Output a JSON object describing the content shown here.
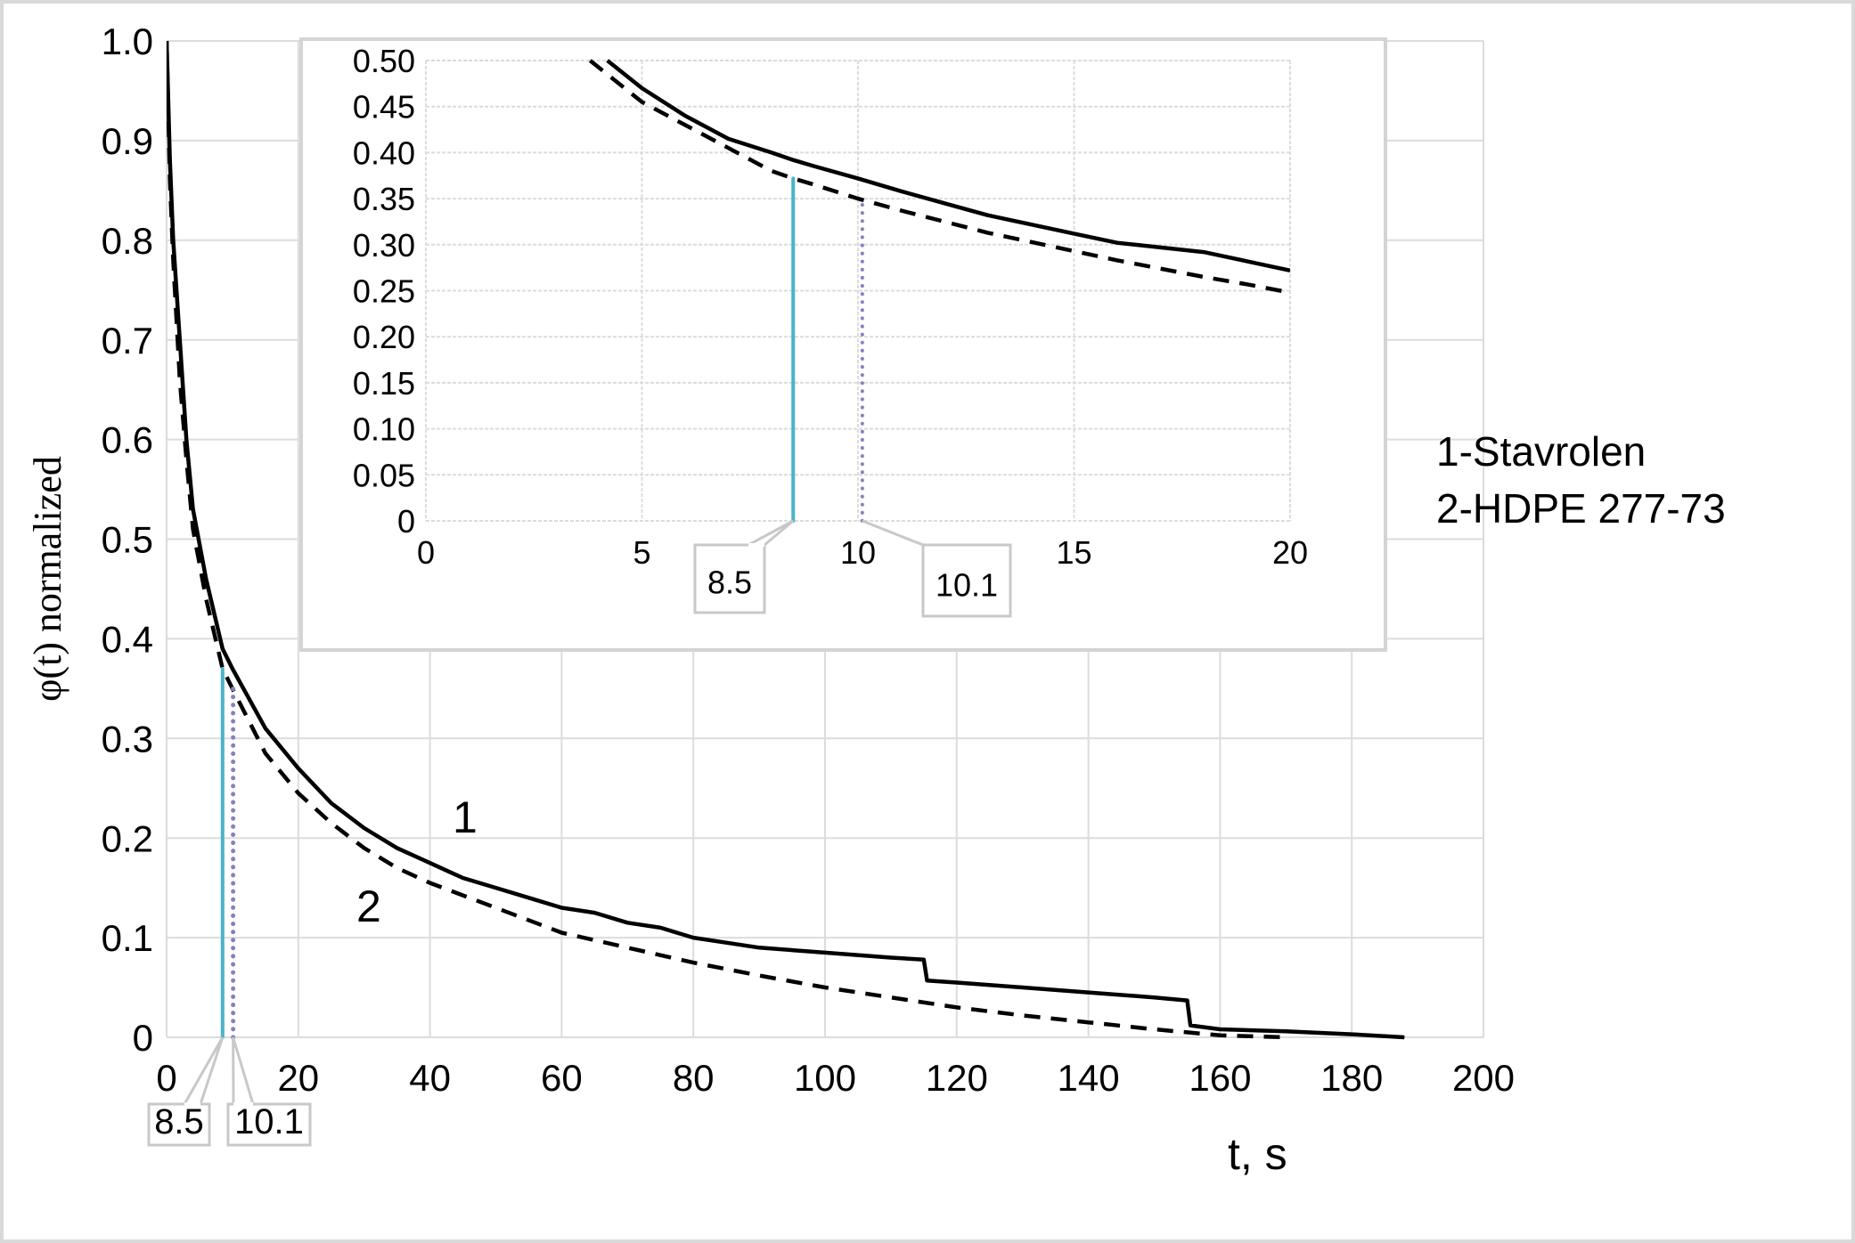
{
  "chart_data": {
    "type": "line",
    "main": {
      "xlabel": "t, s",
      "ylabel": "φ(t) normalized",
      "xlim": [
        0,
        200
      ],
      "ylim": [
        0,
        1.0
      ],
      "x_ticks": [
        "0",
        "20",
        "40",
        "60",
        "80",
        "100",
        "120",
        "140",
        "160",
        "180",
        "200"
      ],
      "x_tick_values": [
        0,
        20,
        40,
        60,
        80,
        100,
        120,
        140,
        160,
        180,
        200
      ],
      "y_ticks": [
        "0",
        "0.1",
        "0.2",
        "0.3",
        "0.4",
        "0.5",
        "0.6",
        "0.7",
        "0.8",
        "0.9",
        "1.0"
      ],
      "y_tick_values": [
        0,
        0.1,
        0.2,
        0.3,
        0.4,
        0.5,
        0.6,
        0.7,
        0.8,
        0.9,
        1.0
      ],
      "grid": true,
      "series": [
        {
          "name": "1-Stavrolen",
          "label": "1",
          "style": "solid",
          "x": [
            0,
            0.5,
            1,
            2,
            3,
            4,
            6,
            8.5,
            10,
            15,
            20,
            25,
            30,
            35,
            40,
            45,
            50,
            55,
            60,
            65,
            70,
            75,
            80,
            85,
            90,
            100,
            110,
            115,
            115.5,
            120,
            130,
            140,
            150,
            155,
            155.5,
            160,
            170,
            180,
            188
          ],
          "y": [
            1.0,
            0.88,
            0.8,
            0.7,
            0.6,
            0.53,
            0.46,
            0.39,
            0.37,
            0.31,
            0.27,
            0.235,
            0.21,
            0.19,
            0.175,
            0.16,
            0.15,
            0.14,
            0.13,
            0.125,
            0.115,
            0.11,
            0.1,
            0.095,
            0.09,
            0.085,
            0.08,
            0.078,
            0.057,
            0.055,
            0.05,
            0.045,
            0.04,
            0.037,
            0.012,
            0.008,
            0.006,
            0.003,
            0.0
          ]
        },
        {
          "name": "2-HDPE 277-73",
          "label": "2",
          "style": "dashed",
          "x": [
            0,
            0.5,
            1,
            2,
            3,
            4,
            6,
            8.5,
            10,
            15,
            20,
            25,
            30,
            35,
            40,
            50,
            60,
            70,
            80,
            90,
            100,
            110,
            120,
            130,
            140,
            150,
            160,
            170
          ],
          "y": [
            1.0,
            0.86,
            0.78,
            0.66,
            0.58,
            0.51,
            0.44,
            0.37,
            0.35,
            0.285,
            0.245,
            0.215,
            0.19,
            0.17,
            0.155,
            0.13,
            0.105,
            0.09,
            0.075,
            0.062,
            0.05,
            0.04,
            0.03,
            0.022,
            0.015,
            0.008,
            0.002,
            0.0
          ]
        }
      ],
      "markers": [
        {
          "x": 8.5,
          "y_top": 0.37,
          "style": "solid",
          "color": "#4bb3c8",
          "callout": "8.5"
        },
        {
          "x": 10.1,
          "y_top": 0.35,
          "style": "dotted",
          "color": "#8a7fbf",
          "callout": "10.1"
        }
      ],
      "curve_labels": [
        {
          "text": "1",
          "x": 42,
          "y": 0.215
        },
        {
          "text": "2",
          "x": 31,
          "y": 0.13
        }
      ]
    },
    "inset": {
      "xlim": [
        0,
        20
      ],
      "ylim": [
        0,
        0.5
      ],
      "x_ticks": [
        "0",
        "5",
        "10",
        "15",
        "20"
      ],
      "x_tick_values": [
        0,
        5,
        10,
        15,
        20
      ],
      "y_ticks": [
        "0",
        "0.05",
        "0.10",
        "0.15",
        "0.20",
        "0.25",
        "0.30",
        "0.35",
        "0.40",
        "0.45",
        "0.50"
      ],
      "y_tick_values": [
        0,
        0.05,
        0.1,
        0.15,
        0.2,
        0.25,
        0.3,
        0.35,
        0.4,
        0.45,
        0.5
      ],
      "grid": true,
      "series": [
        {
          "name": "1-Stavrolen",
          "style": "solid",
          "x": [
            4.2,
            5,
            6,
            7,
            8,
            8.5,
            9,
            10,
            11,
            12,
            13,
            14,
            15,
            16,
            17,
            18,
            19,
            20
          ],
          "y": [
            0.5,
            0.47,
            0.44,
            0.415,
            0.4,
            0.392,
            0.385,
            0.372,
            0.358,
            0.345,
            0.332,
            0.322,
            0.312,
            0.302,
            0.297,
            0.292,
            0.282,
            0.272
          ]
        },
        {
          "name": "2-HDPE 277-73",
          "style": "dashed",
          "x": [
            3.8,
            5,
            6,
            7,
            8,
            8.5,
            9,
            10,
            11,
            12,
            13,
            14,
            15,
            16,
            17,
            18,
            19,
            20
          ],
          "y": [
            0.5,
            0.455,
            0.43,
            0.405,
            0.38,
            0.372,
            0.365,
            0.35,
            0.337,
            0.325,
            0.313,
            0.303,
            0.293,
            0.283,
            0.274,
            0.265,
            0.257,
            0.248
          ]
        }
      ],
      "markers": [
        {
          "x": 8.5,
          "y_top": 0.372,
          "style": "solid",
          "color": "#4bb3c8",
          "callout": "8.5"
        },
        {
          "x": 10.1,
          "y_top": 0.35,
          "style": "dotted",
          "color": "#8a7fbf",
          "callout": "10.1"
        }
      ]
    },
    "legend": {
      "placement": "right",
      "entries": [
        "1-Stavrolen",
        "2-HDPE 277-73"
      ]
    }
  }
}
